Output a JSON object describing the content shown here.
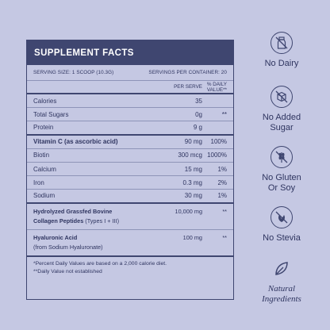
{
  "panel": {
    "title": "SUPPLEMENT FACTS",
    "serving_size": "SERVING SIZE: 1 SCOOP (10.3G)",
    "servings_per_container": "SERVINGS PER CONTAINER: 20",
    "col_per_serve": "PER SERVE",
    "col_daily_value": "% DAILY VALUE**",
    "rows": [
      {
        "name": "Calories",
        "amount": "35",
        "dv": ""
      },
      {
        "name": "Total Sugars",
        "amount": "0g",
        "dv": "**"
      },
      {
        "name": "Protein",
        "amount": "9 g",
        "dv": ""
      },
      {
        "name": "Vitamin C (as ascorbic acid)",
        "amount": "90 mg",
        "dv": "100%"
      },
      {
        "name": "Biotin",
        "amount": "300 mcg",
        "dv": "1000%"
      },
      {
        "name": "Calcium",
        "amount": "15 mg",
        "dv": "1%"
      },
      {
        "name": "Iron",
        "amount": "0.3 mg",
        "dv": "2%"
      },
      {
        "name": "Sodium",
        "amount": "30 mg",
        "dv": "1%"
      }
    ],
    "collagen": {
      "line1": "Hydrolyzed Grassfed Bovine",
      "line2_bold": "Collagen Peptides",
      "line2_rest": " (Types I + III)",
      "amount": "10,000 mg",
      "dv": "**"
    },
    "hyaluronic": {
      "line1": "Hyaluronic Acid",
      "line2": "(from Sodium Hyaluronate)",
      "amount": "100 mg",
      "dv": "**"
    },
    "footnote1": "*Percent Daily Values are based on a 2,000 calorie diet.",
    "footnote2": "**Daily Value not established"
  },
  "badges": [
    {
      "icon": "no-dairy-icon",
      "label": "No Dairy"
    },
    {
      "icon": "no-added-sugar-icon",
      "label_line1": "No Added",
      "label_line2": "Sugar"
    },
    {
      "icon": "no-gluten-icon",
      "label_line1": "No Gluten",
      "label_line2": "Or Soy"
    },
    {
      "icon": "no-stevia-icon",
      "label": "No Stevia"
    },
    {
      "icon": "leaf-icon",
      "label_line1": "Natural",
      "label_line2": "Ingredients"
    }
  ],
  "colors": {
    "background": "#c5c8e3",
    "navy": "#3f4670",
    "text": "#2f3560"
  }
}
